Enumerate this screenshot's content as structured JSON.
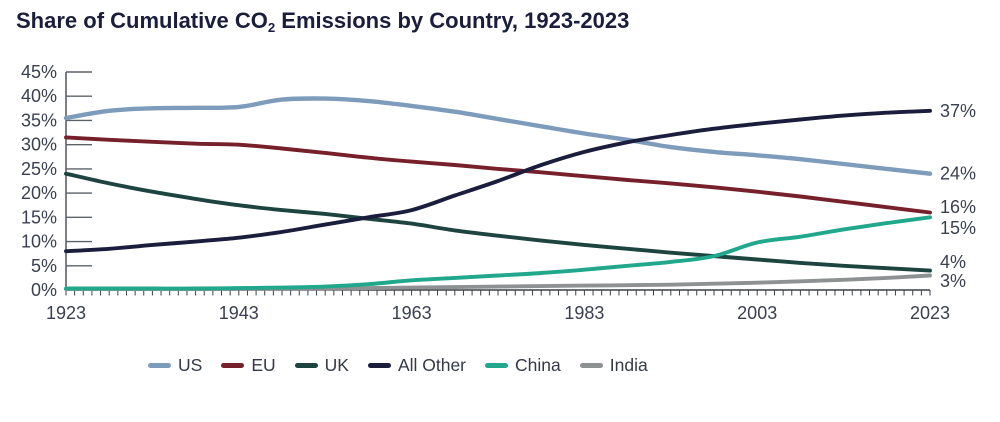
{
  "title": {
    "text": "Share of Cumulative CO2 Emissions by Country, 1923-2023",
    "prefix": "Share of Cumulative CO",
    "subscript": "2",
    "suffix": " Emissions by Country, 1923-2023"
  },
  "colors": {
    "title_text": "#1A1E3C",
    "axis_text": "#3A4050",
    "axis_line": "#5C6168",
    "baseline": "#3C4148",
    "background": "#FFFFFF"
  },
  "chart_data": {
    "type": "line",
    "title": "Share of Cumulative CO2 Emissions by Country, 1923-2023",
    "xlabel": "",
    "ylabel": "",
    "xlim": [
      1923,
      2023
    ],
    "ylim": [
      0,
      45
    ],
    "grid": false,
    "legend_position": "bottom",
    "x": [
      1923,
      1928,
      1933,
      1938,
      1943,
      1948,
      1953,
      1958,
      1963,
      1968,
      1973,
      1978,
      1983,
      1988,
      1993,
      1998,
      2003,
      2008,
      2013,
      2018,
      2023
    ],
    "xtick_labels": [
      "1923",
      "1943",
      "1963",
      "1983",
      "2003",
      "2023"
    ],
    "ytick_labels": [
      "0%",
      "5%",
      "10%",
      "15%",
      "20%",
      "25%",
      "30%",
      "35%",
      "40%",
      "45%"
    ],
    "series": [
      {
        "name": "US",
        "color": "#7D9CBB",
        "end_label": "24%",
        "values": [
          35.5,
          37,
          37.5,
          37.6,
          37.8,
          39.3,
          39.5,
          39,
          38,
          36.8,
          35.3,
          33.8,
          32.3,
          31,
          29.5,
          28.5,
          27.8,
          27,
          26,
          25,
          24
        ]
      },
      {
        "name": "EU",
        "color": "#76202C",
        "end_label": "16%",
        "values": [
          31.5,
          31,
          30.6,
          30.2,
          30,
          29.2,
          28.3,
          27.3,
          26.5,
          25.8,
          25,
          24.3,
          23.5,
          22.7,
          22,
          21.2,
          20.3,
          19.3,
          18.2,
          17.1,
          16
        ]
      },
      {
        "name": "UK",
        "color": "#1D4440",
        "end_label": "4%",
        "values": [
          24,
          22,
          20.3,
          18.8,
          17.5,
          16.5,
          15.7,
          14.7,
          13.7,
          12.3,
          11.2,
          10.2,
          9.3,
          8.5,
          7.7,
          7,
          6.3,
          5.6,
          5,
          4.5,
          4
        ]
      },
      {
        "name": "All Other",
        "color": "#1A1D3C",
        "end_label": "37%",
        "values": [
          8,
          8.5,
          9.3,
          10,
          10.8,
          12,
          13.5,
          15,
          16.5,
          19.5,
          22.5,
          25.8,
          28.5,
          30.5,
          32,
          33.3,
          34.3,
          35.2,
          36,
          36.6,
          37
        ]
      },
      {
        "name": "China",
        "color": "#20A78C",
        "end_label": "15%",
        "values": [
          0.3,
          0.3,
          0.3,
          0.3,
          0.4,
          0.5,
          0.7,
          1.2,
          2,
          2.5,
          3,
          3.5,
          4.2,
          5,
          5.8,
          7,
          9.8,
          11,
          12.5,
          13.8,
          15
        ]
      },
      {
        "name": "India",
        "color": "#8D9192",
        "end_label": "3%",
        "values": [
          0.2,
          0.2,
          0.2,
          0.2,
          0.3,
          0.3,
          0.3,
          0.4,
          0.5,
          0.6,
          0.7,
          0.8,
          0.9,
          1,
          1.1,
          1.3,
          1.5,
          1.8,
          2.1,
          2.5,
          3
        ]
      }
    ]
  }
}
